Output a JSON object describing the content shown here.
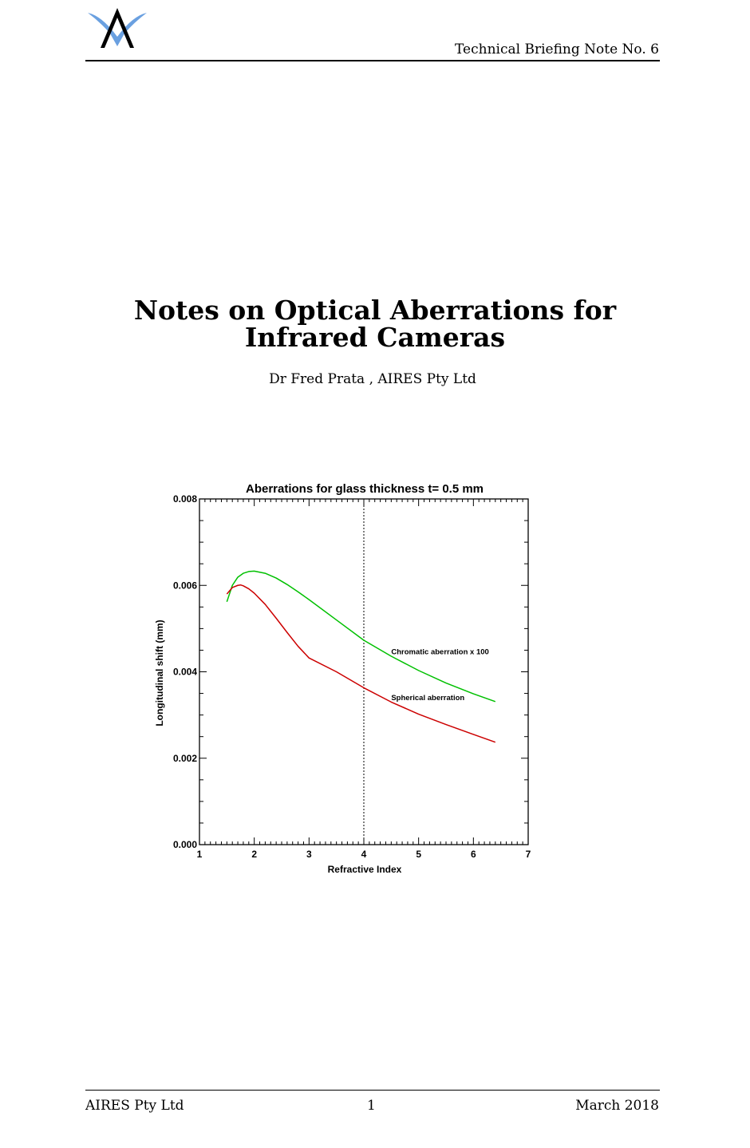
{
  "header": {
    "logo_icon": "aires-logo-icon",
    "title": "Technical Briefing Note No. 6"
  },
  "document": {
    "title_line1": "Notes on Optical Aberrations for",
    "title_line2": "Infrared Cameras",
    "author": "Dr Fred Prata , AIRES Pty Ltd"
  },
  "chart_data": {
    "type": "line",
    "title": "Aberrations for glass thickness t=  0.5 mm",
    "xlabel": "Refractive Index",
    "ylabel": "Longitudinal shift (mm)",
    "xlim": [
      1,
      7
    ],
    "ylim": [
      0,
      0.008
    ],
    "x_ticks": [
      "1",
      "2",
      "3",
      "4",
      "5",
      "6",
      "7"
    ],
    "y_ticks": [
      "0.000",
      "0.002",
      "0.004",
      "0.006",
      "0.008"
    ],
    "grid": false,
    "vertical_reference_line": {
      "x": 4,
      "style": "dotted"
    },
    "series": [
      {
        "name": "Chromatic aberration x 100",
        "color": "#00c000",
        "x": [
          1.5,
          1.6,
          1.7,
          1.8,
          1.9,
          2.0,
          2.2,
          2.4,
          2.6,
          2.8,
          3.0,
          3.5,
          4.0,
          4.5,
          5.0,
          5.5,
          6.0,
          6.4
        ],
        "y": [
          0.00562,
          0.006,
          0.00619,
          0.00628,
          0.00632,
          0.00633,
          0.00628,
          0.00617,
          0.00602,
          0.00585,
          0.00567,
          0.0052,
          0.00473,
          0.00436,
          0.00403,
          0.00374,
          0.00349,
          0.00331
        ]
      },
      {
        "name": "Spherical aberration",
        "color": "#cc0000",
        "x": [
          1.5,
          1.6,
          1.7,
          1.75,
          1.8,
          1.9,
          2.0,
          2.2,
          2.4,
          2.6,
          2.8,
          3.0,
          3.5,
          4.0,
          4.5,
          5.0,
          5.5,
          6.0,
          6.4
        ],
        "y": [
          0.0058,
          0.00595,
          0.006,
          0.00601,
          0.00599,
          0.00592,
          0.00582,
          0.00556,
          0.00524,
          0.00491,
          0.00459,
          0.00432,
          0.004,
          0.00363,
          0.0033,
          0.00302,
          0.00278,
          0.00255,
          0.00237
        ]
      }
    ],
    "annotations": [
      {
        "text": "Chromatic aberration x 100",
        "x": 4.5,
        "y": 0.00441
      },
      {
        "text": "Spherical aberration",
        "x": 4.5,
        "y": 0.00334
      }
    ]
  },
  "footer": {
    "left": "AIRES Pty Ltd",
    "center": "1",
    "right": "March 2018"
  }
}
